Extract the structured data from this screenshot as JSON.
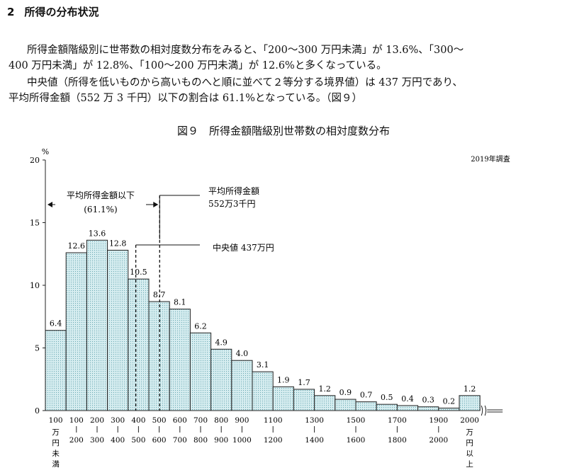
{
  "section": {
    "number": "2",
    "title": "所得の分布状況"
  },
  "paragraphs": {
    "p1_line1": "所得金額階級別に世帯数の相対度数分布をみると、「200～300 万円未満」が 13.6%、「300～",
    "p1_line2": "400 万円未満」が 12.8%、「100～200 万円未満」が 12.6%と多くなっている。",
    "p2_line1": "中央値（所得を低いものから高いものへと順に並べて２等分する境界値）は 437 万円であり、",
    "p2_line2": "平均所得金額（552 万 3 千円）以下の割合は 61.1%となっている。（図９）"
  },
  "figure": {
    "title": "図９　所得金額階級別世帯数の相対度数分布"
  },
  "chart_data": {
    "type": "bar",
    "survey_note": "2019年調査",
    "y_unit": "%",
    "ylim": [
      0,
      20
    ],
    "yticks": [
      "0",
      "5",
      "10",
      "15",
      "20"
    ],
    "categories": [
      "100万円未満",
      "100-200",
      "200-300",
      "300-400",
      "400-500",
      "500-600",
      "600-700",
      "700-800",
      "800-900",
      "900-1000",
      "1000-1100",
      "1100-1200",
      "1200-1300",
      "1300-1400",
      "1400-1500",
      "1500-1600",
      "1600-1700",
      "1700-1800",
      "1800-1900",
      "1900-2000",
      "2000万円以上"
    ],
    "values": [
      6.4,
      12.6,
      13.6,
      12.8,
      10.5,
      8.7,
      8.1,
      6.2,
      4.9,
      4.0,
      3.1,
      1.9,
      1.7,
      1.2,
      0.9,
      0.7,
      0.5,
      0.4,
      0.3,
      0.2,
      1.2
    ],
    "value_labels": [
      "6.4",
      "12.6",
      "13.6",
      "12.8",
      "10.5",
      "8.7",
      "8.1",
      "6.2",
      "4.9",
      "4.0",
      "3.1",
      "1.9",
      "1.7",
      "1.2",
      "0.9",
      "0.7",
      "0.5",
      "0.4",
      "0.3",
      "0.2",
      "1.2"
    ],
    "x_tick_labels": [
      {
        "top": "100",
        "bottom": "",
        "vertical": [
          "万",
          "円",
          "未",
          "満"
        ]
      },
      {
        "top": "100",
        "bottom": "200"
      },
      {
        "top": "200",
        "bottom": "300"
      },
      {
        "top": "300",
        "bottom": "400"
      },
      {
        "top": "400",
        "bottom": "500"
      },
      {
        "top": "500",
        "bottom": "600"
      },
      {
        "top": "600",
        "bottom": "700"
      },
      {
        "top": "700",
        "bottom": "800"
      },
      {
        "top": "800",
        "bottom": "900"
      },
      {
        "top": "900",
        "bottom": "1000"
      },
      {
        "top": "1100",
        "bottom": "1200"
      },
      {
        "top": "1300",
        "bottom": "1400"
      },
      {
        "top": "1500",
        "bottom": "1600"
      },
      {
        "top": "1700",
        "bottom": "1800"
      },
      {
        "top": "1900",
        "bottom": "2000"
      },
      {
        "top": "2000",
        "bottom": "",
        "vertical": [
          "万",
          "円",
          "以",
          "上"
        ]
      }
    ],
    "annotations": {
      "below_mean_label": "平均所得金額以下",
      "below_mean_pct": "(61.1%)",
      "mean_label_1": "平均所得金額",
      "mean_label_2": "552万3千円",
      "median_label": "中央値 437万円"
    },
    "mean_value": 552.3,
    "median_value": 437,
    "bar_color": "#cfe8ec",
    "bar_stroke": "#222222"
  }
}
